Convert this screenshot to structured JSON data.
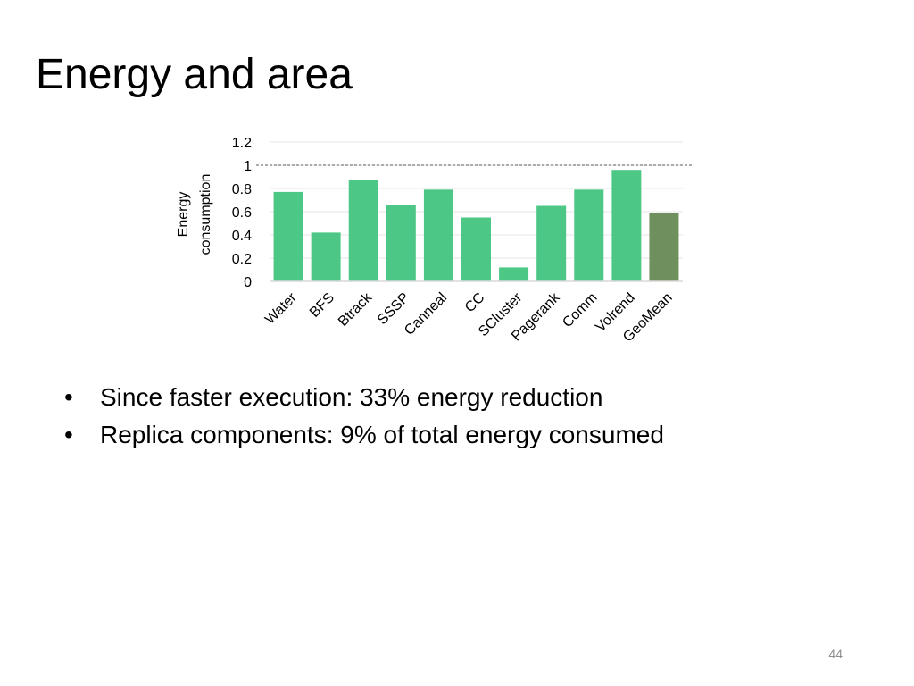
{
  "slide": {
    "title": "Energy and area",
    "bullets": [
      "Since faster execution: 33% energy reduction",
      "Replica components: 9% of total energy consumed"
    ],
    "bullet_glyph": "•",
    "page_number": "44"
  },
  "chart_data": {
    "type": "bar",
    "title": "",
    "ylabel": "Energy consumption",
    "xlabel": "",
    "ylim": [
      0,
      1.2
    ],
    "yticks": [
      0,
      0.2,
      0.4,
      0.6,
      0.8,
      1,
      1.2
    ],
    "ytick_labels": [
      "0",
      "0.2",
      "0.4",
      "0.6",
      "0.8",
      "1",
      "1.2"
    ],
    "reference_line": 1,
    "grid": true,
    "legend": "none",
    "categories": [
      "Water",
      "BFS",
      "Btrack",
      "SSSP",
      "Canneal",
      "CC",
      "SCluster",
      "Pagerank",
      "Comm",
      "Volrend",
      "GeoMean"
    ],
    "values": [
      0.77,
      0.42,
      0.87,
      0.66,
      0.79,
      0.55,
      0.12,
      0.65,
      0.79,
      0.96,
      0.59
    ],
    "colors": {
      "bar": "#4dc785",
      "geomean": "#6f8f5f",
      "grid": "#e6e6e6",
      "axis": "#d9d9d9",
      "reference": "#595959",
      "text": "#000000"
    }
  }
}
